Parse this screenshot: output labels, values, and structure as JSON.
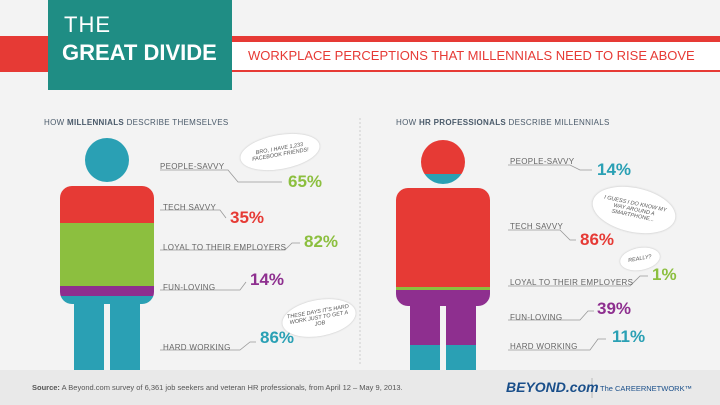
{
  "header": {
    "title_line1": "THE",
    "title_line2": "GREAT DIVIDE",
    "subtitle": "WORKPLACE PERCEPTIONS THAT MILLENNIALS NEED TO RISE ABOVE"
  },
  "left": {
    "heading_pre": "HOW",
    "heading_bold": "MILLENNIALS",
    "heading_post": "DESCRIBE THEMSELVES",
    "items": [
      {
        "label": "PEOPLE-SAVVY",
        "value": "65%"
      },
      {
        "label": "TECH SAVVY",
        "value": "35%"
      },
      {
        "label": "LOYAL TO THEIR EMPLOYERS",
        "value": "82%"
      },
      {
        "label": "FUN-LOVING",
        "value": "14%"
      },
      {
        "label": "HARD WORKING",
        "value": "86%"
      }
    ],
    "bubbles": [
      "BRO, I HAVE 1,233 FACEBOOK FRIENDS!",
      "THESE DAYS IT'S HARD WORK JUST TO GET A JOB"
    ]
  },
  "right": {
    "heading_pre": "HOW",
    "heading_bold": "HR PROFESSIONALS",
    "heading_post": "DESCRIBE MILLENNIALS",
    "items": [
      {
        "label": "PEOPLE-SAVVY",
        "value": "14%"
      },
      {
        "label": "TECH SAVVY",
        "value": "86%"
      },
      {
        "label": "LOYAL TO THEIR EMPLOYERS",
        "value": "1%"
      },
      {
        "label": "FUN-LOVING",
        "value": "39%"
      },
      {
        "label": "HARD WORKING",
        "value": "11%"
      }
    ],
    "bubbles": [
      "I GUESS I DO KNOW MY WAY AROUND A SMARTPHONE...",
      "REALLY?"
    ]
  },
  "footer": {
    "source_label": "Source:",
    "source_text": "A Beyond.com survey of 6,361 job seekers and veteran HR professionals, from April 12 – May 9, 2013.",
    "logo": "BEYOND.com",
    "tagline": "The CAREERNETWORK™"
  }
}
